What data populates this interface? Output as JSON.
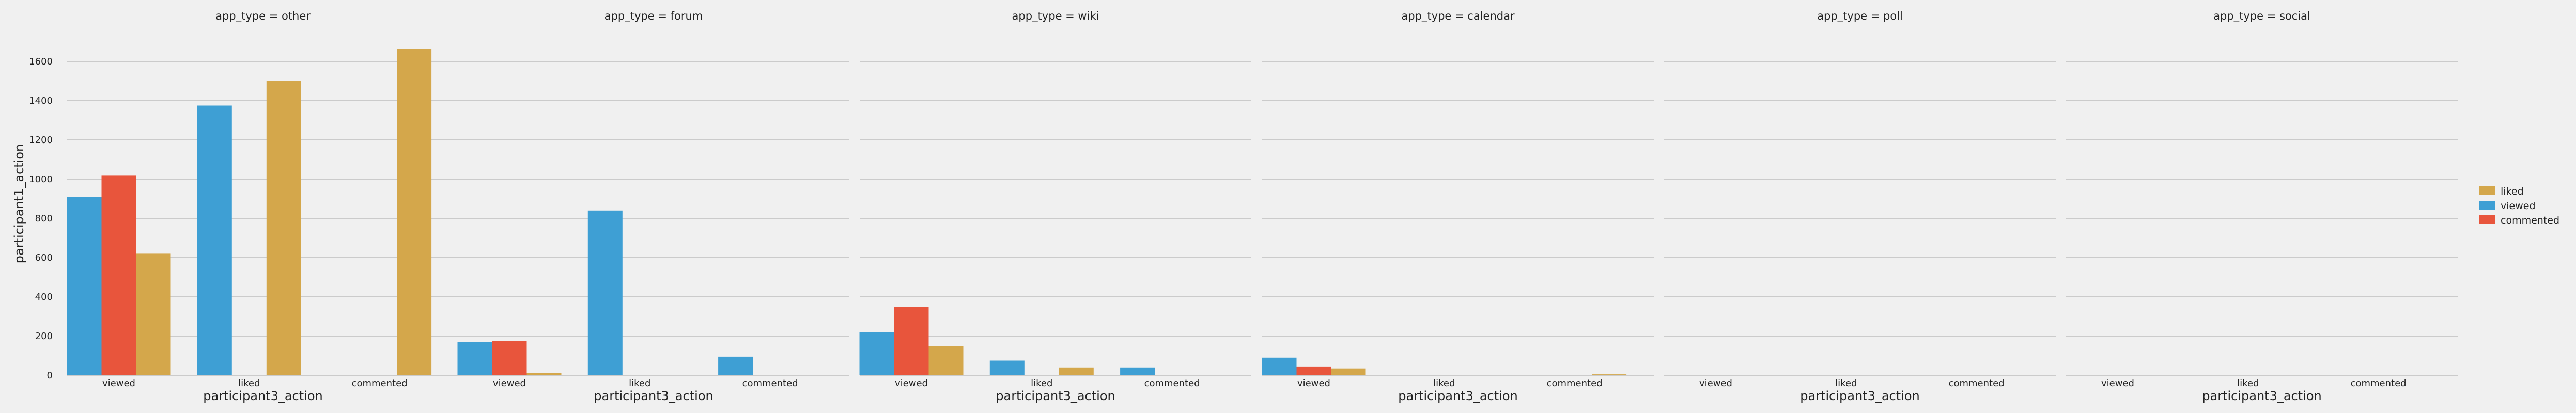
{
  "chart_data": {
    "type": "bar",
    "layout": "faceted columns, 6 panels sharing y-axis",
    "panels": [
      {
        "title": "app_type = other",
        "categories": [
          "viewed",
          "liked",
          "commented"
        ],
        "series": [
          {
            "name": "viewed",
            "values": [
              910,
              1375,
              0
            ]
          },
          {
            "name": "commented",
            "values": [
              1020,
              0,
              0
            ]
          },
          {
            "name": "liked",
            "values": [
              620,
              1500,
              1665
            ]
          }
        ]
      },
      {
        "title": "app_type = forum",
        "categories": [
          "viewed",
          "liked",
          "commented"
        ],
        "series": [
          {
            "name": "viewed",
            "values": [
              170,
              840,
              95
            ]
          },
          {
            "name": "commented",
            "values": [
              175,
              0,
              0
            ]
          },
          {
            "name": "liked",
            "values": [
              12,
              0,
              0
            ]
          }
        ]
      },
      {
        "title": "app_type = wiki",
        "categories": [
          "viewed",
          "liked",
          "commented"
        ],
        "series": [
          {
            "name": "viewed",
            "values": [
              220,
              75,
              40
            ]
          },
          {
            "name": "commented",
            "values": [
              350,
              0,
              0
            ]
          },
          {
            "name": "liked",
            "values": [
              150,
              40,
              0
            ]
          }
        ]
      },
      {
        "title": "app_type = calendar",
        "categories": [
          "viewed",
          "liked",
          "commented"
        ],
        "series": [
          {
            "name": "viewed",
            "values": [
              90,
              0,
              0
            ]
          },
          {
            "name": "commented",
            "values": [
              45,
              0,
              0
            ]
          },
          {
            "name": "liked",
            "values": [
              35,
              0,
              5
            ]
          }
        ]
      },
      {
        "title": "app_type = poll",
        "categories": [
          "viewed",
          "liked",
          "commented"
        ],
        "series": [
          {
            "name": "viewed",
            "values": [
              0,
              0,
              0
            ]
          },
          {
            "name": "commented",
            "values": [
              0,
              0,
              0
            ]
          },
          {
            "name": "liked",
            "values": [
              0,
              0,
              0
            ]
          }
        ]
      },
      {
        "title": "app_type = social",
        "categories": [
          "viewed",
          "liked",
          "commented"
        ],
        "series": [
          {
            "name": "viewed",
            "values": [
              0,
              0,
              0
            ]
          },
          {
            "name": "commented",
            "values": [
              0,
              0,
              0
            ]
          },
          {
            "name": "liked",
            "values": [
              0,
              0,
              0
            ]
          }
        ]
      }
    ],
    "xlabel": "participant3_action",
    "ylabel": "participant1_action",
    "yticks": [
      0,
      200,
      400,
      600,
      800,
      1000,
      1200,
      1400,
      1600
    ],
    "ylim": [
      0,
      1750
    ],
    "grid": true,
    "legend": {
      "placement": "right",
      "entries": [
        "liked",
        "viewed",
        "commented"
      ]
    },
    "colors": {
      "viewed": "#3e9fd4",
      "commented": "#e8553c",
      "liked": "#d4a74b",
      "background": "#f0f0f0",
      "grid": "#cbcbcb"
    }
  }
}
